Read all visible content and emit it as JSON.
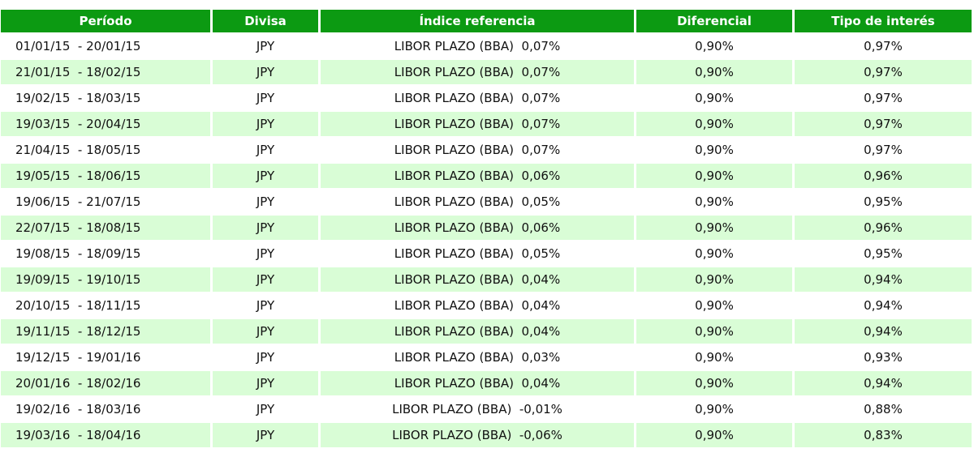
{
  "colors": {
    "header_bg": "#0c9a12",
    "header_text": "#ffffff",
    "row_alt_bg": "#d9fdd6",
    "row_bg": "#ffffff"
  },
  "headers": [
    "Período",
    "Divisa",
    "Índice referencia",
    "Diferencial",
    "Tipo de interés"
  ],
  "rows": [
    {
      "periodo": "01/01/15  - 20/01/15",
      "divisa": "JPY",
      "indice": "LIBOR PLAZO (BBA)  0,07%",
      "diferencial": "0,90%",
      "tipo": "0,97%"
    },
    {
      "periodo": "21/01/15  - 18/02/15",
      "divisa": "JPY",
      "indice": "LIBOR PLAZO (BBA)  0,07%",
      "diferencial": "0,90%",
      "tipo": "0,97%"
    },
    {
      "periodo": "19/02/15  - 18/03/15",
      "divisa": "JPY",
      "indice": "LIBOR PLAZO (BBA)  0,07%",
      "diferencial": "0,90%",
      "tipo": "0,97%"
    },
    {
      "periodo": "19/03/15  - 20/04/15",
      "divisa": "JPY",
      "indice": "LIBOR PLAZO (BBA)  0,07%",
      "diferencial": "0,90%",
      "tipo": "0,97%"
    },
    {
      "periodo": "21/04/15  - 18/05/15",
      "divisa": "JPY",
      "indice": "LIBOR PLAZO (BBA)  0,07%",
      "diferencial": "0,90%",
      "tipo": "0,97%"
    },
    {
      "periodo": "19/05/15  - 18/06/15",
      "divisa": "JPY",
      "indice": "LIBOR PLAZO (BBA)  0,06%",
      "diferencial": "0,90%",
      "tipo": "0,96%"
    },
    {
      "periodo": "19/06/15  - 21/07/15",
      "divisa": "JPY",
      "indice": "LIBOR PLAZO (BBA)  0,05%",
      "diferencial": "0,90%",
      "tipo": "0,95%"
    },
    {
      "periodo": "22/07/15  - 18/08/15",
      "divisa": "JPY",
      "indice": "LIBOR PLAZO (BBA)  0,06%",
      "diferencial": "0,90%",
      "tipo": "0,96%"
    },
    {
      "periodo": "19/08/15  - 18/09/15",
      "divisa": "JPY",
      "indice": "LIBOR PLAZO (BBA)  0,05%",
      "diferencial": "0,90%",
      "tipo": "0,95%"
    },
    {
      "periodo": "19/09/15  - 19/10/15",
      "divisa": "JPY",
      "indice": "LIBOR PLAZO (BBA)  0,04%",
      "diferencial": "0,90%",
      "tipo": "0,94%"
    },
    {
      "periodo": "20/10/15  - 18/11/15",
      "divisa": "JPY",
      "indice": "LIBOR PLAZO (BBA)  0,04%",
      "diferencial": "0,90%",
      "tipo": "0,94%"
    },
    {
      "periodo": "19/11/15  - 18/12/15",
      "divisa": "JPY",
      "indice": "LIBOR PLAZO (BBA)  0,04%",
      "diferencial": "0,90%",
      "tipo": "0,94%"
    },
    {
      "periodo": "19/12/15  - 19/01/16",
      "divisa": "JPY",
      "indice": "LIBOR PLAZO (BBA)  0,03%",
      "diferencial": "0,90%",
      "tipo": "0,93%"
    },
    {
      "periodo": "20/01/16  - 18/02/16",
      "divisa": "JPY",
      "indice": "LIBOR PLAZO (BBA)  0,04%",
      "diferencial": "0,90%",
      "tipo": "0,94%"
    },
    {
      "periodo": "19/02/16  - 18/03/16",
      "divisa": "JPY",
      "indice": "LIBOR PLAZO (BBA)  -0,01%",
      "diferencial": "0,90%",
      "tipo": "0,88%"
    },
    {
      "periodo": "19/03/16  - 18/04/16",
      "divisa": "JPY",
      "indice": "LIBOR PLAZO (BBA)  -0,06%",
      "diferencial": "0,90%",
      "tipo": "0,83%"
    }
  ]
}
